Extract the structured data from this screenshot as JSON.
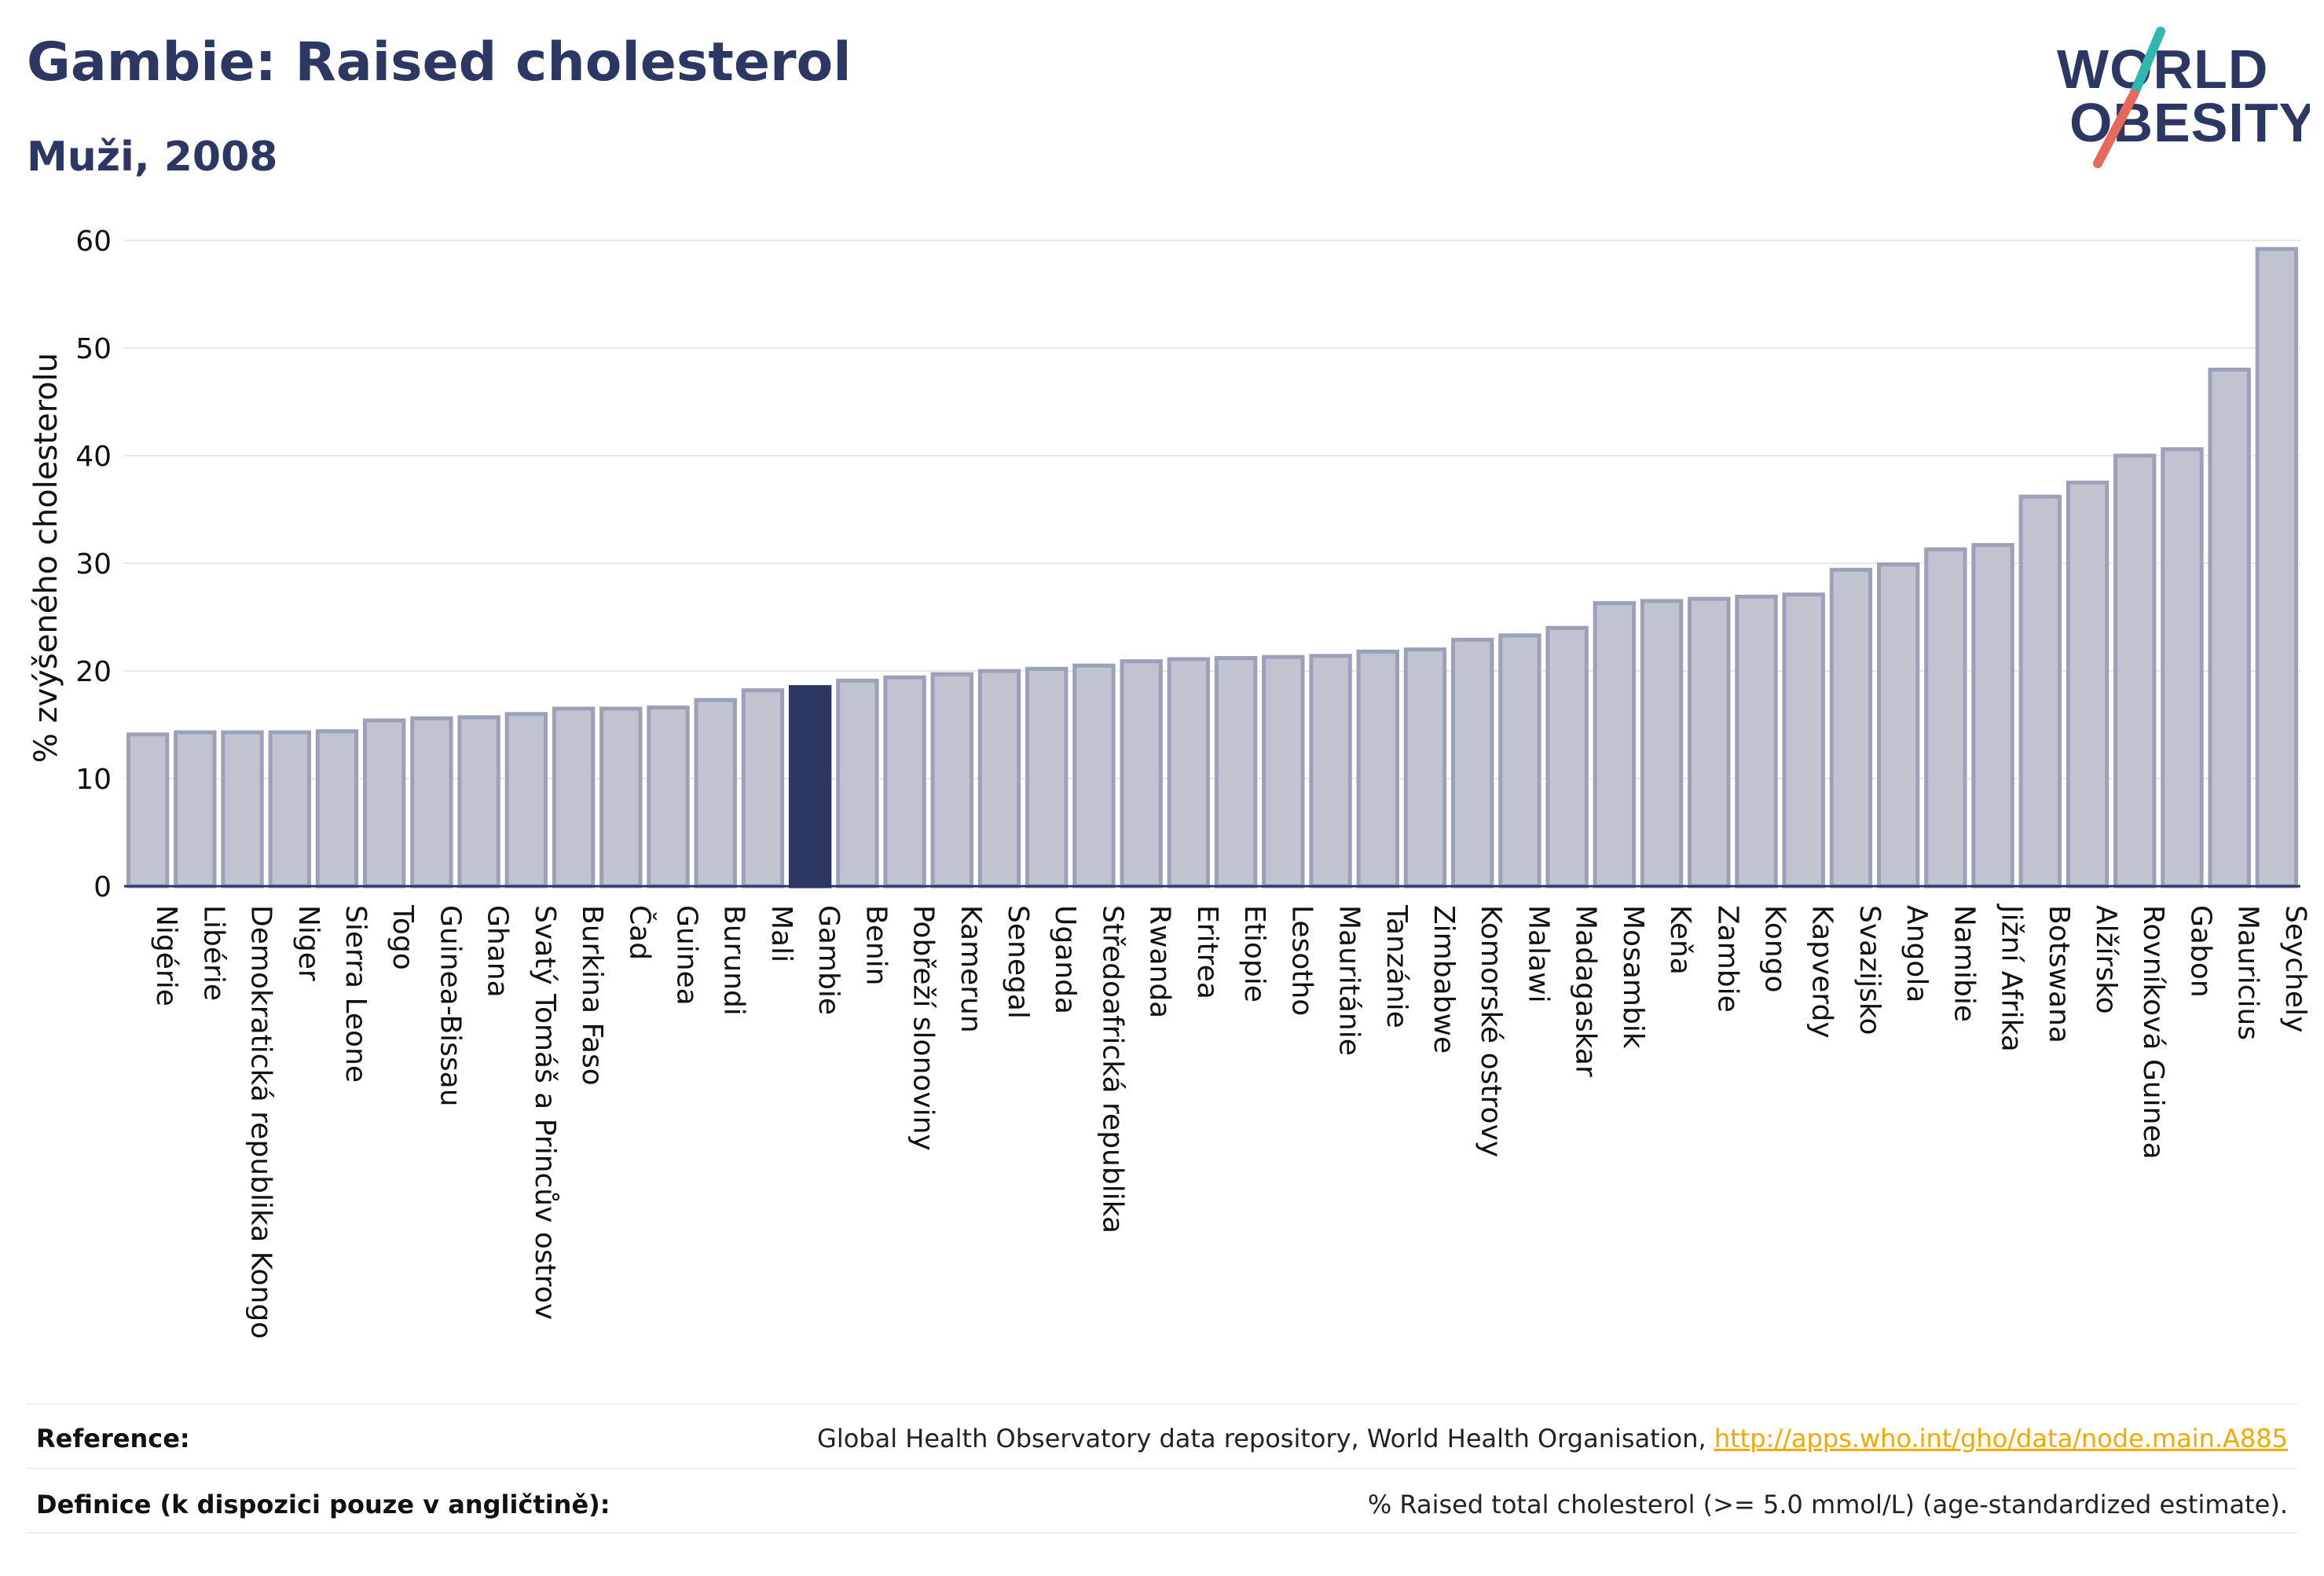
{
  "header": {
    "title": "Gambie: Raised cholesterol",
    "subtitle": "Muži, 2008"
  },
  "logo": {
    "line1": "WORLD",
    "line2": "OBESITY",
    "color": "#2c3763",
    "accent_teal": "#2fb8b0",
    "accent_red": "#e8695a"
  },
  "chart_data": {
    "type": "bar",
    "ylabel": "% zvýšeného cholesterolu",
    "ylim": [
      0,
      60
    ],
    "yticks": [
      0,
      10,
      20,
      30,
      40,
      50,
      60
    ],
    "grid": true,
    "highlight": "Gambie",
    "colors": {
      "bar": "#c0c4d1",
      "bar_edge": "#9aa1b8",
      "highlight": "#2c3763"
    },
    "categories": [
      "Nigérie",
      "Libérie",
      "Demokratická republika Kongo",
      "Niger",
      "Sierra Leone",
      "Togo",
      "Guinea-Bissau",
      "Ghana",
      "Svatý Tomáš a Princův ostrov",
      "Burkina Faso",
      "Čad",
      "Guinea",
      "Burundi",
      "Mali",
      "Gambie",
      "Benin",
      "Pobřeží slonoviny",
      "Kamerun",
      "Senegal",
      "Uganda",
      "Středoafrická republika",
      "Rwanda",
      "Eritrea",
      "Etiopie",
      "Lesotho",
      "Mauritánie",
      "Tanzánie",
      "Zimbabwe",
      "Komorské ostrovy",
      "Malawi",
      "Madagaskar",
      "Mosambik",
      "Keňa",
      "Zambie",
      "Kongo",
      "Kapverdy",
      "Svazijsko",
      "Angola",
      "Namibie",
      "Jižní Afrika",
      "Botswana",
      "Alžírsko",
      "Rovníková Guinea",
      "Gabon",
      "Mauricius",
      "Seychely"
    ],
    "values": [
      14.1,
      14.3,
      14.3,
      14.3,
      14.4,
      15.4,
      15.6,
      15.7,
      16.0,
      16.5,
      16.5,
      16.6,
      17.3,
      18.2,
      18.5,
      19.1,
      19.4,
      19.7,
      20.0,
      20.2,
      20.5,
      20.9,
      21.1,
      21.2,
      21.3,
      21.4,
      21.8,
      22.0,
      22.9,
      23.3,
      24.0,
      26.3,
      26.5,
      26.7,
      26.9,
      27.1,
      29.4,
      29.9,
      31.3,
      31.7,
      36.2,
      37.5,
      40.0,
      40.6,
      48.0,
      59.2
    ]
  },
  "footer": {
    "reference_label": "Reference:",
    "reference_text": "Global Health Observatory data repository, World Health Organisation, ",
    "reference_link": "http://apps.who.int/gho/data/node.main.A885",
    "definition_label": "Definice (k dispozici pouze v angličtině):",
    "definition_text": "% Raised total cholesterol (>= 5.0 mmol/L) (age-standardized estimate)."
  }
}
